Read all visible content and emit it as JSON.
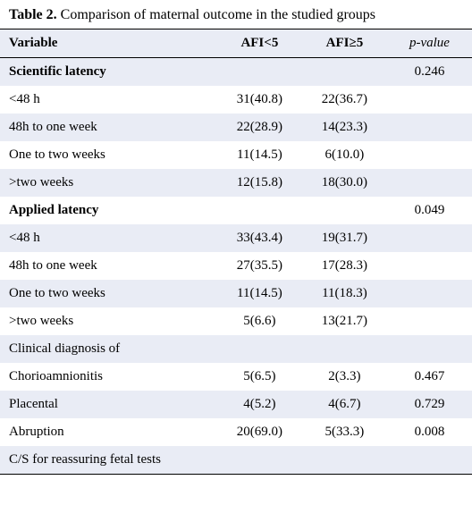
{
  "caption_bold": "Table 2.",
  "caption_rest": " Comparison of maternal outcome in the studied groups",
  "headers": {
    "variable": "Variable",
    "col1": "AFI<5",
    "col2": "AFI≥5",
    "pvalue": "p-value"
  },
  "rows": [
    {
      "type": "section",
      "alt": true,
      "label": "Scientific latency",
      "c1": "",
      "c2": "",
      "p": "0.246"
    },
    {
      "type": "sub",
      "alt": false,
      "label": "<48 h",
      "c1": "31(40.8)",
      "c2": "22(36.7)",
      "p": ""
    },
    {
      "type": "sub",
      "alt": true,
      "label": "48h to one week",
      "c1": "22(28.9)",
      "c2": "14(23.3)",
      "p": ""
    },
    {
      "type": "sub",
      "alt": false,
      "label": "One to two weeks",
      "c1": "11(14.5)",
      "c2": "6(10.0)",
      "p": ""
    },
    {
      "type": "sub",
      "alt": true,
      "label": ">two weeks",
      "c1": "12(15.8)",
      "c2": "18(30.0)",
      "p": ""
    },
    {
      "type": "section",
      "alt": false,
      "label": "Applied latency",
      "c1": "",
      "c2": "",
      "p": "0.049"
    },
    {
      "type": "sub",
      "alt": true,
      "label": "<48 h",
      "c1": "33(43.4)",
      "c2": "19(31.7)",
      "p": ""
    },
    {
      "type": "sub",
      "alt": false,
      "label": "48h to one week",
      "c1": "27(35.5)",
      "c2": "17(28.3)",
      "p": ""
    },
    {
      "type": "sub",
      "alt": true,
      "label": "One to two weeks",
      "c1": "11(14.5)",
      "c2": "11(18.3)",
      "p": ""
    },
    {
      "type": "sub",
      "alt": false,
      "label": ">two weeks",
      "c1": "5(6.6)",
      "c2": "13(21.7)",
      "p": ""
    },
    {
      "type": "plain",
      "alt": true,
      "label": "Clinical diagnosis of",
      "c1": "",
      "c2": "",
      "p": ""
    },
    {
      "type": "plain",
      "alt": false,
      "label": "Chorioamnionitis",
      "c1": "5(6.5)",
      "c2": "2(3.3)",
      "p": "0.467"
    },
    {
      "type": "plain",
      "alt": true,
      "label": "Placental",
      "c1": "4(5.2)",
      "c2": "4(6.7)",
      "p": "0.729"
    },
    {
      "type": "plain",
      "alt": false,
      "label": "Abruption",
      "c1": "20(69.0)",
      "c2": "5(33.3)",
      "p": "0.008"
    },
    {
      "type": "plain",
      "alt": true,
      "label": "C/S for reassuring fetal tests",
      "c1": "",
      "c2": "",
      "p": ""
    }
  ]
}
